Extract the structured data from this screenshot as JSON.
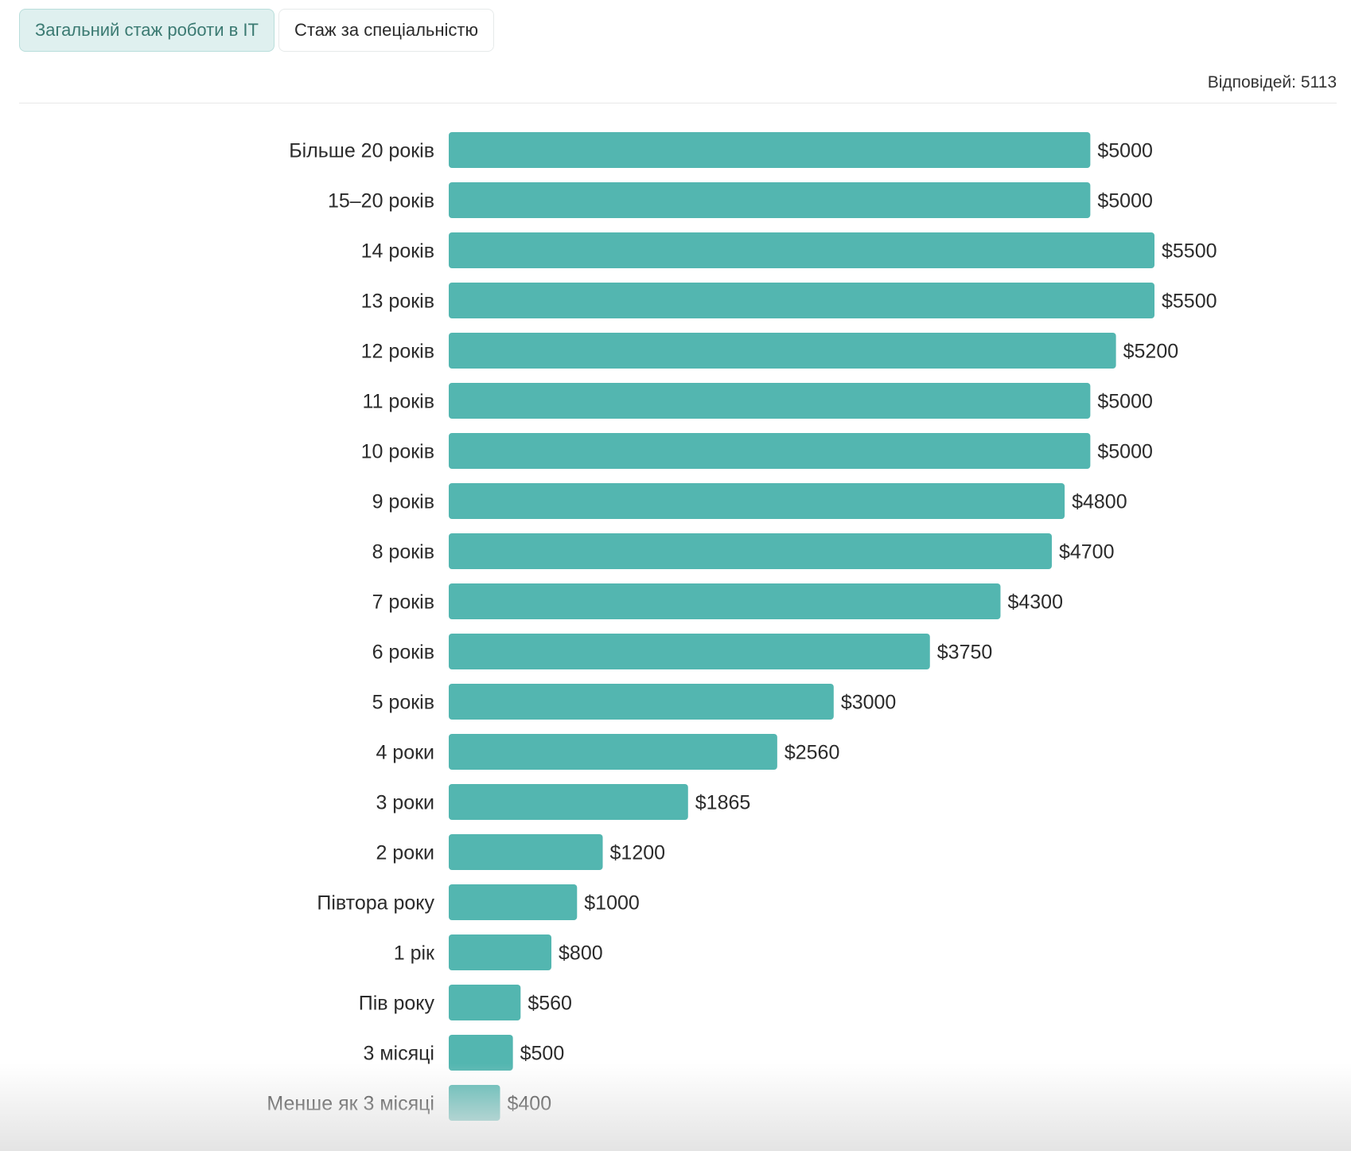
{
  "tabs": [
    {
      "label": "Загальний стаж роботи в IT",
      "active": true
    },
    {
      "label": "Стаж за спеціальністю",
      "active": false
    }
  ],
  "responses_label": "Відповідей: 5113",
  "colors": {
    "bar": "#53b6b0",
    "accent_text": "#3b7a72"
  },
  "chart_data": {
    "type": "bar",
    "orientation": "horizontal",
    "categories": [
      "Більше 20 років",
      "15–20 років",
      "14 років",
      "13 років",
      "12 років",
      "11 років",
      "10 років",
      "9 років",
      "8 років",
      "7 років",
      "6 років",
      "5 років",
      "4 роки",
      "3 роки",
      "2 роки",
      "Півтора року",
      "1 рік",
      "Пів року",
      "3 місяці",
      "Менше як 3 місяці"
    ],
    "values": [
      5000,
      5000,
      5500,
      5500,
      5200,
      5000,
      5000,
      4800,
      4700,
      4300,
      3750,
      3000,
      2560,
      1865,
      1200,
      1000,
      800,
      560,
      500,
      400
    ],
    "value_labels": [
      "$5000",
      "$5000",
      "$5500",
      "$5500",
      "$5200",
      "$5000",
      "$5000",
      "$4800",
      "$4700",
      "$4300",
      "$3750",
      "$3000",
      "$2560",
      "$1865",
      "$1200",
      "$1000",
      "$800",
      "$560",
      "$500",
      "$400"
    ],
    "xlim": [
      0,
      5500
    ],
    "grid": false
  }
}
